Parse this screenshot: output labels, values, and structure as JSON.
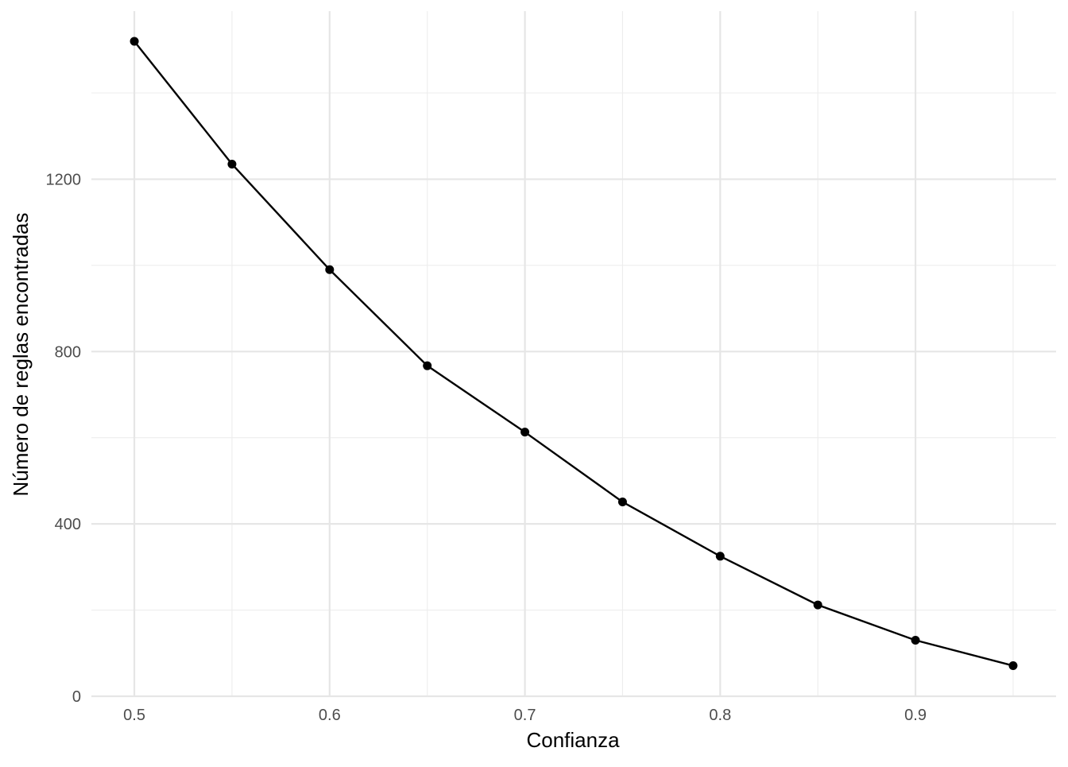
{
  "chart_data": {
    "type": "line",
    "title": "",
    "xlabel": "Confianza",
    "ylabel": "Número de reglas encontradas",
    "x": [
      0.5,
      0.55,
      0.6,
      0.65,
      0.7,
      0.75,
      0.8,
      0.85,
      0.9,
      0.95
    ],
    "series": [
      {
        "values": [
          1520,
          1235,
          990,
          767,
          613,
          451,
          325,
          212,
          130,
          71
        ]
      }
    ],
    "xlim": [
      0.478,
      0.972
    ],
    "ylim": [
      0,
      1590
    ],
    "x_ticks": [
      0.5,
      0.6,
      0.7,
      0.8,
      0.9
    ],
    "x_tick_labels": [
      "0.5",
      "0.6",
      "0.7",
      "0.8",
      "0.9"
    ],
    "y_ticks": [
      0,
      400,
      800,
      1200
    ],
    "y_tick_labels": [
      "0",
      "400",
      "800",
      "1200"
    ],
    "x_minor_ticks": [
      0.55,
      0.65,
      0.75,
      0.85,
      0.95
    ],
    "y_minor_ticks": [
      200,
      600,
      1000,
      1400
    ],
    "grid": true,
    "legend": "none",
    "colors": {
      "line": "#000000",
      "points": "#000000",
      "grid": "#ebebeb",
      "background": "#ffffff"
    }
  }
}
